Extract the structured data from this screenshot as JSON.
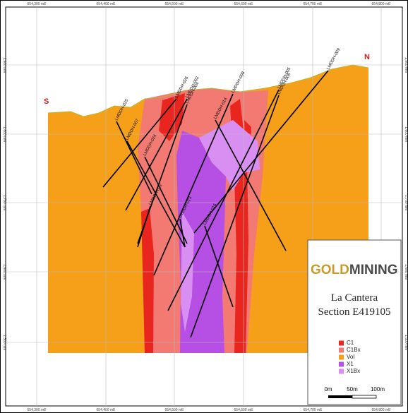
{
  "map": {
    "compass": {
      "south": "S",
      "north": "N"
    },
    "easting_labels": [
      "654,300 mE",
      "654,400 mE",
      "654,500 mE",
      "654,600 mE",
      "654,700 mE",
      "654,800 mE"
    ],
    "elevation_labels": [
      "1,900 mN",
      "1,800 mN",
      "1,700 mN",
      "1,600 mN",
      "1,500 mN"
    ],
    "drill_holes": [
      "LMDDH-025",
      "LMDDH-026",
      "LMDDH-002",
      "LMDDH-004",
      "LMDDH-008",
      "LMDDH-005",
      "LMDDH-006",
      "LMDDH-009",
      "LMDDH-007",
      "LMDDH-024",
      "LMDDH-022",
      "LMDDH-023",
      "LMDDH-014",
      "LMDDH-016"
    ]
  },
  "logo": {
    "gold": "GOLD",
    "mining": "MINING"
  },
  "title": "La Cantera",
  "subtitle": "Section E419105",
  "legend": {
    "items": [
      {
        "label": "C1",
        "color": "#e8261f"
      },
      {
        "label": "C1Bx",
        "color": "#f27a72"
      },
      {
        "label": "Vol",
        "color": "#f6a01a"
      },
      {
        "label": "X1",
        "color": "#b64fe3"
      },
      {
        "label": "X1Bx",
        "color": "#d98ef2"
      }
    ]
  },
  "scale_bar": {
    "labels": [
      "0m",
      "50m",
      "100m"
    ]
  }
}
